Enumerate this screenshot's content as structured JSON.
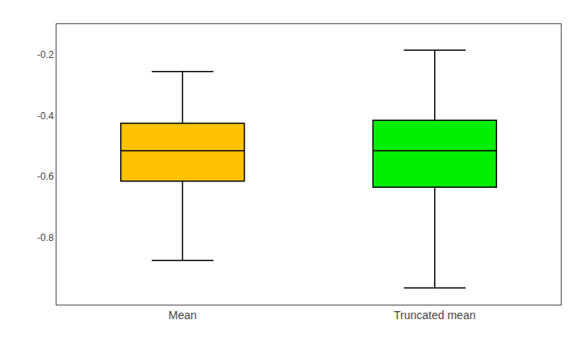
{
  "chart_data": {
    "type": "box",
    "categories": [
      "Mean",
      "Truncated mean"
    ],
    "whisker_low": [
      -0.875,
      -0.965
    ],
    "q1": [
      -0.615,
      -0.635
    ],
    "median": [
      -0.515,
      -0.515
    ],
    "q3": [
      -0.425,
      -0.415
    ],
    "whisker_high": [
      -0.255,
      -0.185
    ],
    "colors": [
      "#FFC200",
      "#00EE00"
    ],
    "ylim": [
      -1.02,
      -0.1
    ],
    "yticks": [
      -0.2,
      -0.4,
      -0.6,
      -0.8
    ],
    "grid": false
  }
}
